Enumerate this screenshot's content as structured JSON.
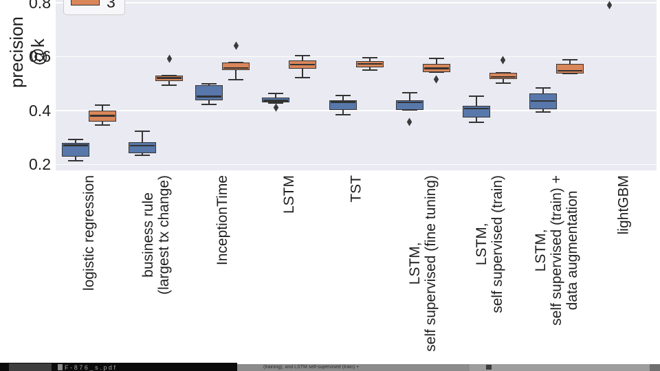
{
  "chart_data": {
    "type": "boxplot",
    "ylabel": "precision @k",
    "yticks": [
      "0.8",
      "0.6",
      "0.4",
      "0.2"
    ],
    "ytick_values": [
      0.8,
      0.6,
      0.4,
      0.2
    ],
    "ylim_visible": [
      0.178,
      0.81
    ],
    "grid": true,
    "plot_background": "#eaeaf2",
    "box_edge_color": "#333333",
    "legend": {
      "position": "upper-left",
      "clipped_at_top": true,
      "visible_entries": [
        {
          "label": "3",
          "color": "#d9865a"
        }
      ]
    },
    "categories": [
      "logistic regression",
      "business rule\n(largest tx change)",
      "InceptionTime",
      "LSTM",
      "TST",
      "LSTM,\nself supervised (fine tuning)",
      "LSTM,\nself supervised (train)",
      "LSTM,\nself supervised (train) +\ndata augmentation",
      "lightGBM"
    ],
    "series": [
      {
        "name": "",
        "color": "#5878ab",
        "boxes": [
          {
            "whislo": 0.215,
            "q1": 0.229,
            "med": 0.271,
            "q3": 0.281,
            "whishi": 0.293,
            "outliers": []
          },
          {
            "whislo": 0.234,
            "q1": 0.243,
            "med": 0.27,
            "q3": 0.282,
            "whishi": 0.323,
            "outliers": []
          },
          {
            "whislo": 0.423,
            "q1": 0.439,
            "med": 0.452,
            "q3": 0.493,
            "whishi": 0.498,
            "outliers": []
          },
          {
            "whislo": 0.428,
            "q1": 0.43,
            "med": 0.437,
            "q3": 0.447,
            "whishi": 0.464,
            "outliers": [
              0.412
            ]
          },
          {
            "whislo": 0.384,
            "q1": 0.403,
            "med": 0.432,
            "q3": 0.437,
            "whishi": 0.457,
            "outliers": []
          },
          {
            "whislo": 0.403,
            "q1": 0.403,
            "med": 0.43,
            "q3": 0.437,
            "whishi": 0.465,
            "outliers": [
              0.357
            ]
          },
          {
            "whislo": 0.356,
            "q1": 0.375,
            "med": 0.408,
            "q3": 0.418,
            "whishi": 0.453,
            "outliers": []
          },
          {
            "whislo": 0.395,
            "q1": 0.404,
            "med": 0.436,
            "q3": 0.464,
            "whishi": 0.483,
            "outliers": []
          },
          {
            "whislo": null,
            "q1": null,
            "med": null,
            "q3": null,
            "whishi": null,
            "outliers": [
              0.79
            ]
          }
        ]
      },
      {
        "name": "3",
        "color": "#d9865a",
        "boxes": [
          {
            "whislo": 0.346,
            "q1": 0.36,
            "med": 0.381,
            "q3": 0.399,
            "whishi": 0.419,
            "outliers": []
          },
          {
            "whislo": 0.493,
            "q1": 0.51,
            "med": 0.521,
            "q3": 0.53,
            "whishi": 0.53,
            "outliers": [
              0.592
            ]
          },
          {
            "whislo": 0.515,
            "q1": 0.549,
            "med": 0.558,
            "q3": 0.578,
            "whishi": 0.578,
            "outliers": [
              0.64
            ]
          },
          {
            "whislo": 0.521,
            "q1": 0.555,
            "med": 0.57,
            "q3": 0.587,
            "whishi": 0.604,
            "outliers": []
          },
          {
            "whislo": 0.55,
            "q1": 0.56,
            "med": 0.573,
            "q3": 0.583,
            "whishi": 0.596,
            "outliers": []
          },
          {
            "whislo": 0.543,
            "q1": 0.543,
            "med": 0.556,
            "q3": 0.573,
            "whishi": 0.593,
            "outliers": [
              0.515
            ]
          },
          {
            "whislo": 0.502,
            "q1": 0.517,
            "med": 0.525,
            "q3": 0.54,
            "whishi": 0.54,
            "outliers": [
              0.588
            ]
          },
          {
            "whislo": 0.538,
            "q1": 0.538,
            "med": 0.548,
            "q3": 0.574,
            "whishi": 0.589,
            "outliers": []
          },
          null
        ]
      }
    ]
  },
  "window": {
    "pdf_filename": "F-876_s.pdf",
    "caption_fragment": "(training), and LSTM self-supervised (train) +"
  }
}
